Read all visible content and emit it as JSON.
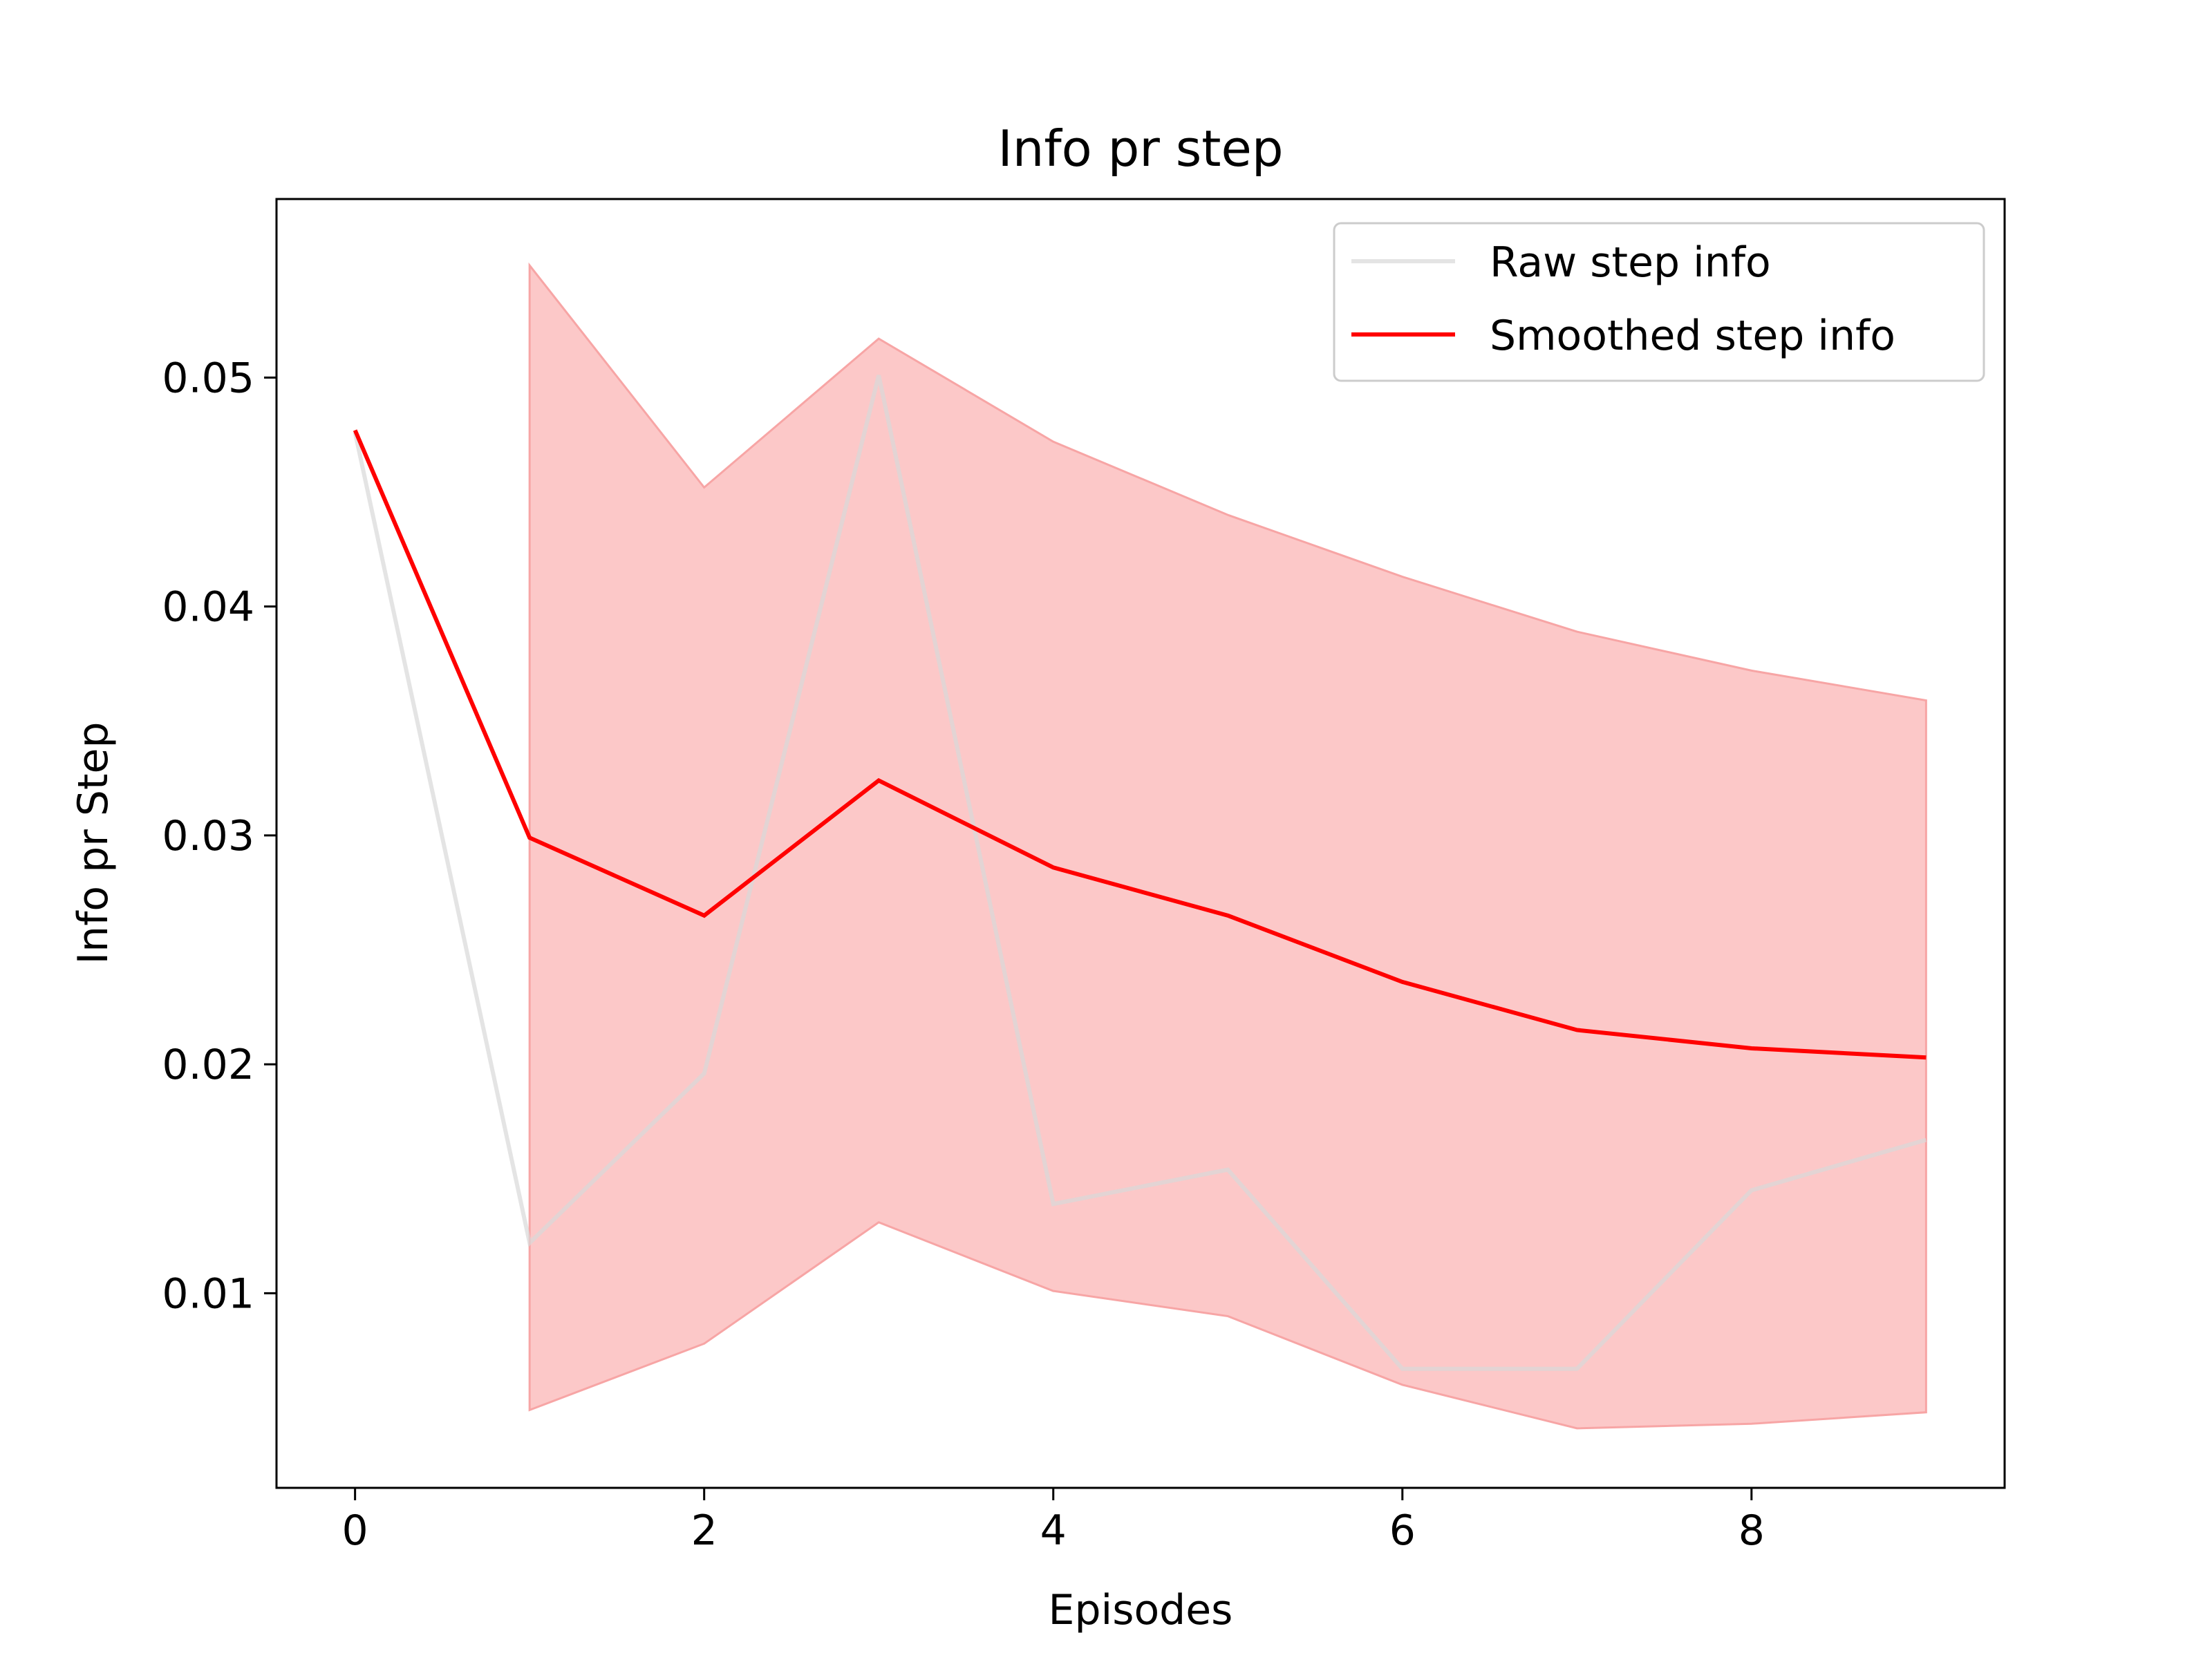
{
  "chart_data": {
    "type": "line",
    "title": "Info pr step",
    "xlabel": "Episodes",
    "ylabel": "Info pr Step",
    "xlim": [
      -0.45,
      9.45
    ],
    "ylim": [
      0.0015,
      0.0578
    ],
    "xticks": [
      0,
      2,
      4,
      6,
      8
    ],
    "xtick_labels": [
      "0",
      "2",
      "4",
      "6",
      "8"
    ],
    "yticks": [
      0.01,
      0.02,
      0.03,
      0.04,
      0.05
    ],
    "ytick_labels": [
      "0.01",
      "0.02",
      "0.03",
      "0.04",
      "0.05"
    ],
    "grid": false,
    "legend_position": "upper right",
    "x": [
      0,
      1,
      2,
      3,
      4,
      5,
      6,
      7,
      8,
      9
    ],
    "series": [
      {
        "name": "Raw step info",
        "color": "#d9d9d9",
        "values": [
          0.0476,
          0.0122,
          0.0196,
          0.0501,
          0.0139,
          0.0154,
          0.0067,
          0.0067,
          0.0145,
          0.0167
        ]
      },
      {
        "name": "Smoothed step info",
        "color": "#ff0000",
        "values": [
          0.0477,
          0.0299,
          0.0265,
          0.0324,
          0.0286,
          0.0265,
          0.0236,
          0.0215,
          0.0207,
          0.0203
        ]
      }
    ],
    "band": {
      "color": "#fcc8c8",
      "edge_color": "#f7a5a5",
      "x": [
        1,
        2,
        3,
        4,
        5,
        6,
        7,
        8,
        9
      ],
      "upper": [
        0.0549,
        0.0452,
        0.0517,
        0.0472,
        0.044,
        0.0413,
        0.0389,
        0.0372,
        0.0359
      ],
      "lower": [
        0.0049,
        0.0078,
        0.0131,
        0.0101,
        0.009,
        0.006,
        0.0041,
        0.0043,
        0.0048
      ]
    }
  }
}
